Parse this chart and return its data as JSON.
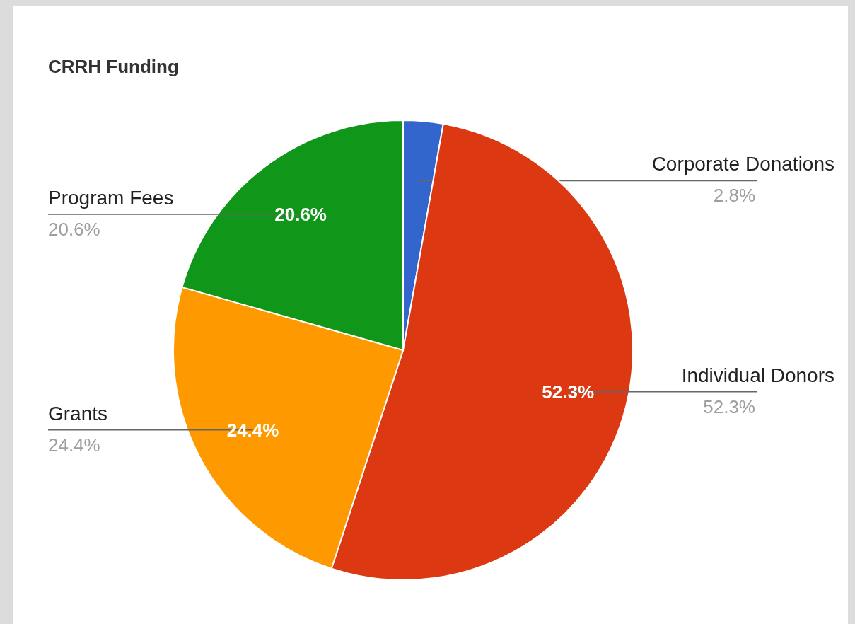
{
  "chart_data": {
    "type": "pie",
    "title": "CRRH Funding",
    "categories": [
      "Corporate Donations",
      "Individual Donors",
      "Grants",
      "Program Fees"
    ],
    "values": [
      2.8,
      52.3,
      24.4,
      20.6
    ],
    "colors": [
      "#3366cc",
      "#dc3912",
      "#ff9900",
      "#109618"
    ],
    "value_labels": [
      "2.8%",
      "52.3%",
      "24.4%",
      "20.6%"
    ]
  }
}
